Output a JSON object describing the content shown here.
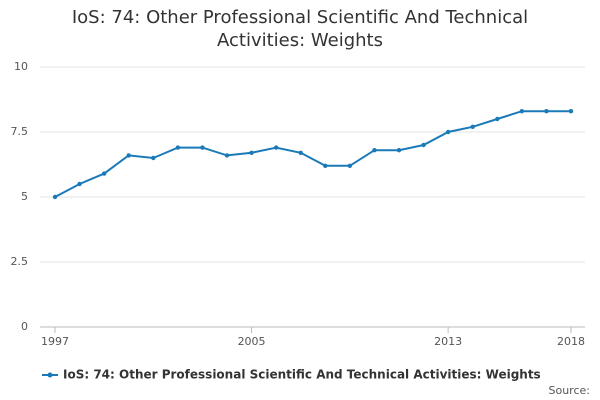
{
  "chart_data": {
    "type": "line",
    "title": "IoS: 74: Other Professional Scientific And Technical Activities: Weights",
    "x": [
      1997,
      1998,
      1999,
      2000,
      2001,
      2002,
      2003,
      2004,
      2005,
      2006,
      2007,
      2008,
      2009,
      2010,
      2011,
      2012,
      2013,
      2014,
      2015,
      2016,
      2017,
      2018
    ],
    "series": [
      {
        "name": "IoS: 74: Other Professional Scientific And Technical Activities: Weights",
        "color": "#1a7ab8",
        "values": [
          5.0,
          5.5,
          5.9,
          6.6,
          6.5,
          6.9,
          6.9,
          6.6,
          6.7,
          6.9,
          6.7,
          6.2,
          6.2,
          6.8,
          6.8,
          7.0,
          7.5,
          7.7,
          8.0,
          8.3,
          8.3,
          8.3
        ]
      }
    ],
    "xlim": [
      1997,
      2018
    ],
    "xticks": [
      1997,
      2005,
      2013,
      2018
    ],
    "ylim": [
      0,
      10
    ],
    "yticks": [
      0,
      2.5,
      5,
      7.5,
      10
    ],
    "grid": true,
    "legend": "bottom",
    "source": "Source:"
  }
}
